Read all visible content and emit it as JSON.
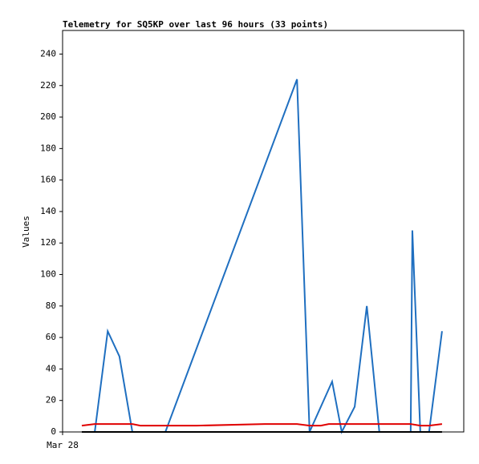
{
  "chart_data": {
    "type": "line",
    "title": "Telemetry for SQ5KP over last 96 hours (33 points)",
    "y_label": "Values",
    "xlim": [
      0,
      96
    ],
    "xticks": [
      {
        "value": 0,
        "label": "Mar 28"
      }
    ],
    "ylim": [
      0,
      255
    ],
    "yticks": [
      0,
      20,
      40,
      60,
      80,
      100,
      120,
      140,
      160,
      180,
      200,
      220,
      240
    ],
    "series": [
      {
        "color": "#1f6fc0",
        "x": [
          7.7,
          10.8,
          13.6,
          16.7,
          24.6,
          56.1,
          59.1,
          64.5,
          66.8,
          69.9,
          72.8,
          75.8,
          83.3,
          83.7,
          85.6,
          87.7,
          90.8
        ],
        "values": [
          0,
          64,
          48,
          0,
          0,
          224,
          0,
          32,
          0,
          16,
          80,
          0,
          0,
          128,
          0,
          0,
          64
        ]
      },
      {
        "color": "#e00000",
        "x": [
          4.6,
          7.7,
          16.7,
          18.6,
          32.1,
          48.4,
          56.1,
          59.1,
          61.8,
          63.7,
          83.3,
          85.6,
          87.7,
          90.8
        ],
        "values": [
          4,
          5,
          5,
          4,
          4,
          5,
          5,
          4,
          4,
          5,
          5,
          4,
          4,
          5
        ]
      },
      {
        "color": "#000000",
        "x": [
          4.6,
          90.8
        ],
        "values": [
          0,
          0
        ]
      }
    ]
  }
}
